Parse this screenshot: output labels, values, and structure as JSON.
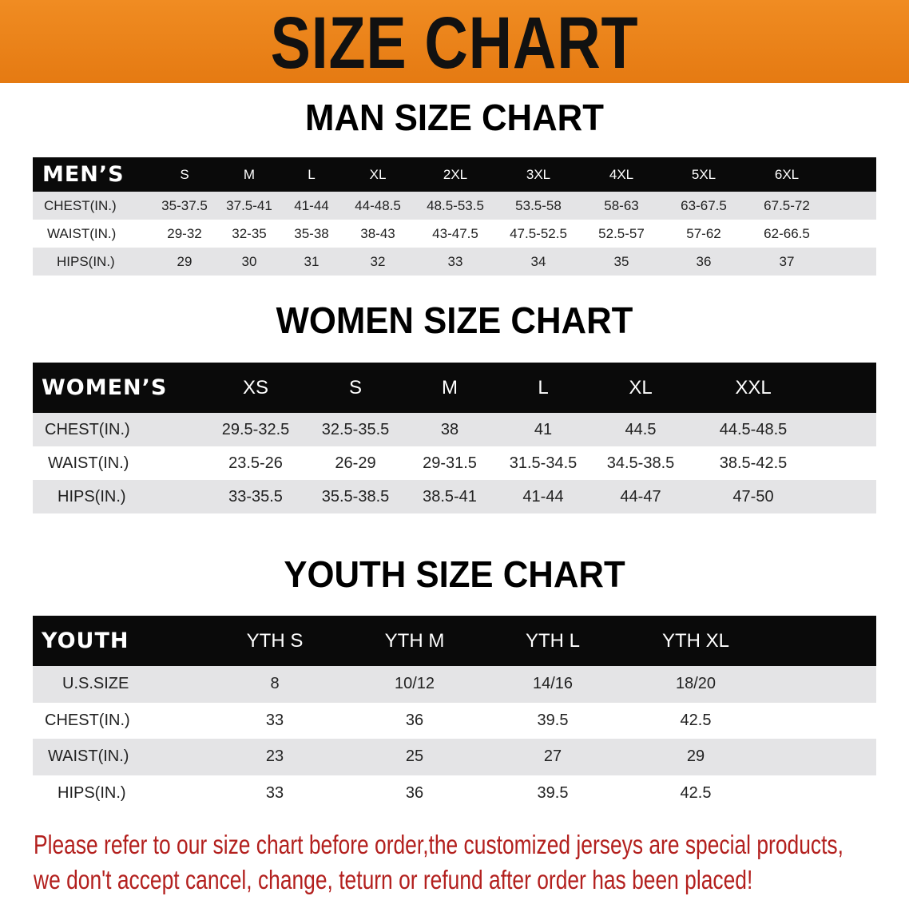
{
  "banner_title": "SIZE CHART",
  "colors": {
    "banner": "#e8821a",
    "header_row": "#0a0a0a",
    "stripe": "#e4e4e6",
    "note": "#b3201e"
  },
  "men": {
    "title": "MAN SIZE CHART",
    "header": "MEN’S",
    "sizes": [
      "S",
      "M",
      "L",
      "XL",
      "2XL",
      "3XL",
      "4XL",
      "5XL",
      "6XL"
    ],
    "rows": [
      {
        "label": "CHEST(IN.)",
        "values": [
          "35-37.5",
          "37.5-41",
          "41-44",
          "44-48.5",
          "48.5-53.5",
          "53.5-58",
          "58-63",
          "63-67.5",
          "67.5-72"
        ]
      },
      {
        "label": "WAIST(IN.)",
        "values": [
          "29-32",
          "32-35",
          "35-38",
          "38-43",
          "43-47.5",
          "47.5-52.5",
          "52.5-57",
          "57-62",
          "62-66.5"
        ]
      },
      {
        "label": "HIPS(IN.)",
        "values": [
          "29",
          "30",
          "31",
          "32",
          "33",
          "34",
          "35",
          "36",
          "37"
        ]
      }
    ]
  },
  "women": {
    "title": "WOMEN SIZE CHART",
    "header": "WOMEN’S",
    "sizes": [
      "XS",
      "S",
      "M",
      "L",
      "XL",
      "XXL"
    ],
    "rows": [
      {
        "label": "CHEST(IN.)",
        "values": [
          "29.5-32.5",
          "32.5-35.5",
          "38",
          "41",
          "44.5",
          "44.5-48.5"
        ]
      },
      {
        "label": "WAIST(IN.)",
        "values": [
          "23.5-26",
          "26-29",
          "29-31.5",
          "31.5-34.5",
          "34.5-38.5",
          "38.5-42.5"
        ]
      },
      {
        "label": "HIPS(IN.)",
        "values": [
          "33-35.5",
          "35.5-38.5",
          "38.5-41",
          "41-44",
          "44-47",
          "47-50"
        ]
      }
    ]
  },
  "youth": {
    "title": "YOUTH SIZE CHART",
    "header": "YOUTH",
    "sizes": [
      "YTH S",
      "YTH M",
      "YTH L",
      "YTH XL"
    ],
    "rows": [
      {
        "label": "U.S.SIZE",
        "values": [
          "8",
          "10/12",
          "14/16",
          "18/20"
        ]
      },
      {
        "label": "CHEST(IN.)",
        "values": [
          "33",
          "36",
          "39.5",
          "42.5"
        ]
      },
      {
        "label": "WAIST(IN.)",
        "values": [
          "23",
          "25",
          "27",
          "29"
        ]
      },
      {
        "label": "HIPS(IN.)",
        "values": [
          "33",
          "36",
          "39.5",
          "42.5"
        ]
      }
    ]
  },
  "note": {
    "line1": "Please refer to our size chart before order,the customized jerseys are special products,",
    "line2": "we don't accept cancel, change, teturn or refund after order has been placed!"
  }
}
